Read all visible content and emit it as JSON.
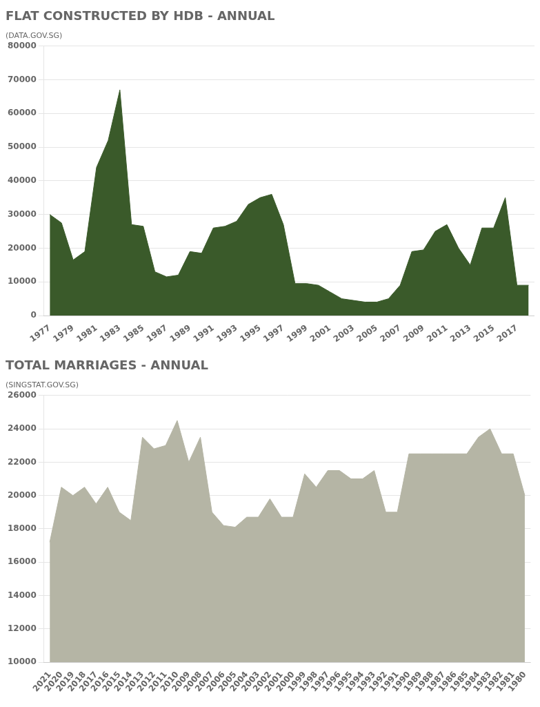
{
  "chart_data": [
    {
      "type": "area",
      "title": "FLAT CONSTRUCTED BY HDB - ANNUAL",
      "subtitle": "(DATA.GOV.SG)",
      "x": [
        1977,
        1978,
        1979,
        1980,
        1981,
        1982,
        1983,
        1984,
        1985,
        1986,
        1987,
        1988,
        1989,
        1990,
        1991,
        1992,
        1993,
        1994,
        1995,
        1996,
        1997,
        1998,
        1999,
        2000,
        2001,
        2002,
        2003,
        2004,
        2005,
        2006,
        2007,
        2008,
        2009,
        2010,
        2011,
        2012,
        2013,
        2014,
        2015,
        2016,
        2017,
        2018
      ],
      "values": [
        30000,
        27500,
        16500,
        19000,
        44000,
        52000,
        67000,
        27000,
        26500,
        13000,
        11500,
        12000,
        19000,
        18500,
        26000,
        26500,
        28000,
        33000,
        35000,
        36000,
        27000,
        9500,
        9500,
        9000,
        7000,
        5000,
        4500,
        4000,
        4000,
        5000,
        9000,
        19000,
        19500,
        25000,
        27000,
        20000,
        15000,
        26000,
        26000,
        35000,
        9000,
        9000
      ],
      "color": "#3a5a2a",
      "xlim": [
        1976.5,
        2018.5
      ],
      "xticks": [
        1977,
        1979,
        1981,
        1983,
        1985,
        1987,
        1989,
        1991,
        1993,
        1995,
        1997,
        1999,
        2001,
        2003,
        2005,
        2007,
        2009,
        2011,
        2013,
        2015,
        2017
      ],
      "ylim": [
        0,
        80000
      ],
      "yticks": [
        0,
        10000,
        20000,
        30000,
        40000,
        50000,
        60000,
        70000,
        80000
      ],
      "grid": true
    },
    {
      "type": "area",
      "title": "TOTAL MARRIAGES - ANNUAL",
      "subtitle": "(SINGSTAT.GOV.SG)",
      "categories": [
        "2021",
        "2020",
        "2019",
        "2018",
        "2017",
        "2016",
        "2015",
        "2014",
        "2013",
        "2012",
        "2011",
        "2010",
        "2009",
        "2008",
        "2007",
        "2006",
        "2005",
        "2004",
        "2003",
        "2002",
        "2001",
        "2000",
        "1999",
        "1998",
        "1997",
        "1996",
        "1995",
        "1994",
        "1993",
        "1992",
        "1991",
        "1990",
        "1989",
        "1988",
        "1987",
        "1986",
        "1985",
        "1984",
        "1983",
        "1982",
        "1981",
        "1980"
      ],
      "values": [
        17200,
        20500,
        20000,
        20500,
        19500,
        20500,
        19000,
        18500,
        23500,
        22800,
        23000,
        24500,
        22000,
        23500,
        19000,
        18200,
        18100,
        18700,
        18700,
        19800,
        18700,
        18700,
        21300,
        20500,
        21500,
        21500,
        21000,
        21000,
        21500,
        19000,
        19000,
        22500,
        22500,
        22500,
        22500,
        22500,
        22500,
        23500,
        24000,
        22500,
        22500,
        20000
      ],
      "color": "#b5b5a5",
      "ylim": [
        10000,
        26000
      ],
      "yticks": [
        10000,
        12000,
        14000,
        16000,
        18000,
        20000,
        22000,
        24000,
        26000
      ],
      "grid": true
    }
  ]
}
